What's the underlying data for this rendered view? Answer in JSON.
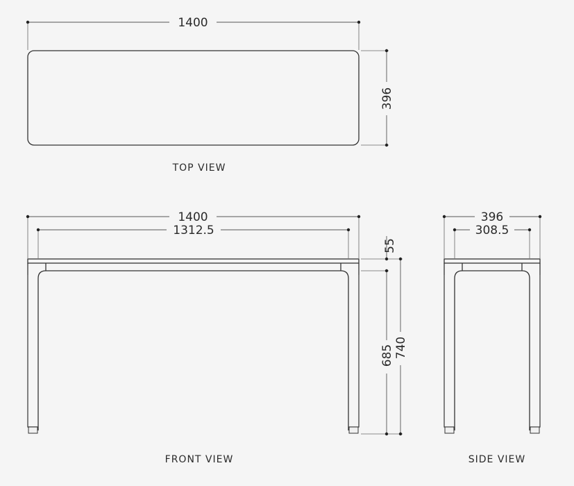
{
  "views": {
    "top": {
      "label": "TOP VIEW",
      "width": "1400",
      "depth": "396"
    },
    "front": {
      "label": "FRONT VIEW",
      "overall_width": "1400",
      "inner_width": "1312.5",
      "top_thickness": "55",
      "leg_height": "685",
      "overall_height": "740"
    },
    "side": {
      "label": "SIDE VIEW",
      "overall_depth": "396",
      "inner_depth": "308.5"
    }
  }
}
